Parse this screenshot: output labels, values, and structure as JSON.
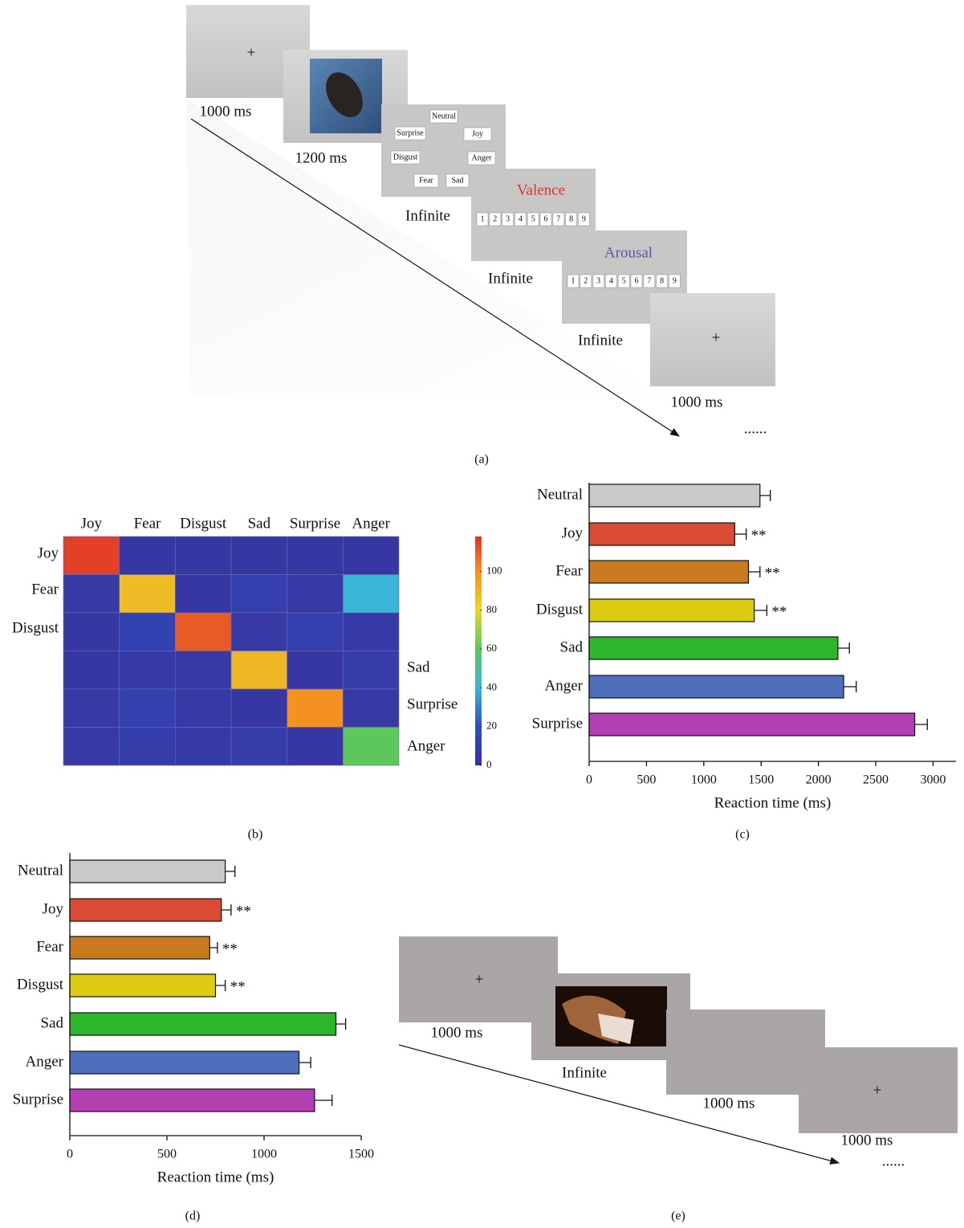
{
  "panel_a": {
    "caption": "(a)",
    "fixation": "+",
    "durations": [
      "1000 ms",
      "1200 ms",
      "Infinite",
      "Infinite",
      "Infinite",
      "1000 ms"
    ],
    "options": [
      "Neutral",
      "Surprise",
      "Joy",
      "Disgust",
      "Anger",
      "Fear",
      "Sad"
    ],
    "valence": "Valence",
    "arousal": "Arousal",
    "scale": [
      1,
      2,
      3,
      4,
      5,
      6,
      7,
      8,
      9
    ],
    "ellipsis": "......"
  },
  "chart_data": [
    {
      "type": "heatmap",
      "caption": "(b)",
      "columns": [
        "Joy",
        "Fear",
        "Disgust",
        "Sad",
        "Surprise",
        "Anger"
      ],
      "rows": [
        "Joy",
        "Fear",
        "Disgust",
        "Sad",
        "Surprise",
        "Anger"
      ],
      "values": [
        [
          115,
          5,
          5,
          5,
          5,
          5
        ],
        [
          6,
          88,
          5,
          10,
          6,
          40
        ],
        [
          5,
          12,
          110,
          6,
          10,
          7
        ],
        [
          5,
          7,
          6,
          90,
          5,
          8
        ],
        [
          6,
          11,
          6,
          5,
          100,
          6
        ],
        [
          6,
          9,
          7,
          8,
          5,
          60
        ]
      ],
      "zlim": [
        0,
        118
      ],
      "zticks": [
        0,
        20,
        40,
        60,
        80,
        100
      ]
    },
    {
      "type": "bar",
      "caption": "(c)",
      "categories": [
        "Neutral",
        "Joy",
        "Fear",
        "Disgust",
        "Sad",
        "Anger",
        "Surprise"
      ],
      "values": [
        1490,
        1270,
        1390,
        1440,
        2170,
        2220,
        2840
      ],
      "errors": [
        90,
        100,
        100,
        110,
        100,
        110,
        110
      ],
      "annotations": [
        null,
        "**",
        "**",
        "**",
        null,
        null,
        null
      ],
      "colors": [
        "#cbc8c8",
        "#db4a33",
        "#c97a1e",
        "#dccb10",
        "#2bb62b",
        "#4f6fbc",
        "#b33fb3"
      ],
      "xlabel": "Reaction time (ms)",
      "xlim": [
        0,
        3200
      ],
      "xticks": [
        0,
        500,
        1000,
        1500,
        2000,
        2500,
        3000
      ]
    },
    {
      "type": "bar",
      "caption": "(d)",
      "categories": [
        "Neutral",
        "Joy",
        "Fear",
        "Disgust",
        "Sad",
        "Anger",
        "Surprise"
      ],
      "values": [
        800,
        780,
        720,
        750,
        1370,
        1180,
        1260
      ],
      "errors": [
        50,
        50,
        40,
        50,
        50,
        60,
        90
      ],
      "annotations": [
        null,
        "**",
        "**",
        "**",
        null,
        null,
        null
      ],
      "colors": [
        "#cbc8c8",
        "#db4a33",
        "#c97a1e",
        "#dccb10",
        "#2bb62b",
        "#4f6fbc",
        "#b33fb3"
      ],
      "xlabel": "Reaction time (ms)",
      "xlim": [
        0,
        1500
      ],
      "xticks": [
        0,
        500,
        1000,
        1500
      ]
    }
  ],
  "panel_e": {
    "caption": "(e)",
    "fixation": "+",
    "durations": [
      "1000 ms",
      "Infinite",
      "1000 ms",
      "1000 ms"
    ],
    "ellipsis": "......"
  }
}
